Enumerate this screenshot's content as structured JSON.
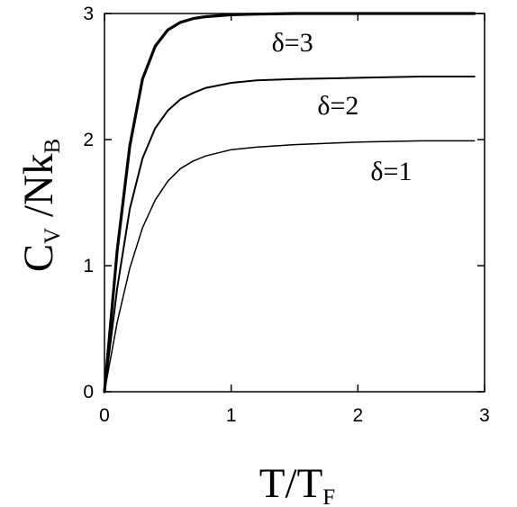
{
  "chart_data": {
    "type": "line",
    "xlabel": {
      "main": "T/T",
      "sub": "F"
    },
    "ylabel": {
      "main1": "C",
      "sub1": "V",
      "main2": " /Nk",
      "sub2": "B"
    },
    "xlim": [
      0,
      3
    ],
    "ylim": [
      0,
      3
    ],
    "xticks": [
      0,
      1,
      2,
      3
    ],
    "yticks": [
      0,
      1,
      2,
      3
    ],
    "grid": false,
    "series": [
      {
        "name": "δ = 1",
        "label": "δ = 1",
        "color": "#000000",
        "x": [
          0,
          0.1,
          0.2,
          0.3,
          0.4,
          0.5,
          0.6,
          0.7,
          0.8,
          1.0,
          1.2,
          1.5,
          2.0,
          2.5,
          2.92
        ],
        "y": [
          0,
          0.55,
          0.98,
          1.3,
          1.52,
          1.67,
          1.77,
          1.83,
          1.87,
          1.92,
          1.94,
          1.96,
          1.98,
          1.99,
          1.99
        ]
      },
      {
        "name": "δ = 2",
        "label": "δ = 2",
        "color": "#000000",
        "x": [
          0,
          0.1,
          0.2,
          0.3,
          0.4,
          0.5,
          0.6,
          0.7,
          0.8,
          1.0,
          1.2,
          1.5,
          2.0,
          2.5,
          2.92
        ],
        "y": [
          0,
          0.82,
          1.45,
          1.85,
          2.09,
          2.23,
          2.32,
          2.37,
          2.41,
          2.45,
          2.47,
          2.48,
          2.49,
          2.5,
          2.5
        ]
      },
      {
        "name": "δ = 3",
        "label": "δ = 3",
        "color": "#000000",
        "x": [
          0,
          0.1,
          0.2,
          0.3,
          0.4,
          0.5,
          0.6,
          0.7,
          0.8,
          1.0,
          1.2,
          1.5,
          2.0,
          2.5,
          2.92
        ],
        "y": [
          0,
          1.12,
          1.95,
          2.48,
          2.74,
          2.87,
          2.93,
          2.96,
          2.975,
          2.99,
          2.995,
          3.0,
          3.0,
          3.0,
          3.0
        ]
      }
    ],
    "curve_labels": [
      {
        "text": "δ=3",
        "x": 1.32,
        "y": 2.7
      },
      {
        "text": "δ=2",
        "x": 1.68,
        "y": 2.2
      },
      {
        "text": "δ=1",
        "x": 2.1,
        "y": 1.68
      }
    ]
  }
}
